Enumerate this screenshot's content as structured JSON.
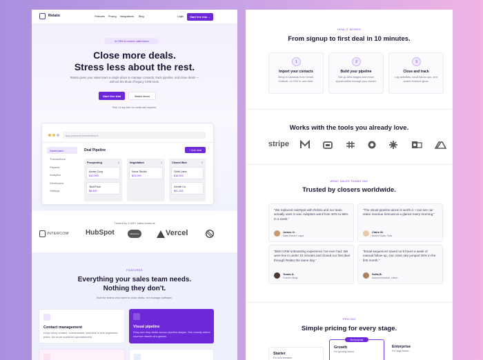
{
  "left": {
    "nav": {
      "brand": "Relato",
      "links": [
        "Features",
        "Pricing",
        "Integrations",
        "Blog"
      ],
      "login": "Login",
      "cta": "Start free trial →"
    },
    "hero": {
      "badge": "AI CRM for modern sales teams",
      "title": [
        "Close more deals.",
        "Stress less about the rest."
      ],
      "subtitle": "Relato gives your sales team a single place to manage contacts, track pipeline, and close deals — without the bloat of legacy CRM tools.",
      "primary": "Start free trial",
      "secondary": "Watch demo",
      "note": "Free 14-day trial. No credit card required."
    },
    "app": {
      "url": "app.payvault.io/dashboard",
      "sidebar": [
        "Dashboard",
        "Transactions",
        "Payouts",
        "Analytics",
        "Developers",
        "Settings"
      ],
      "heading": "Deal Pipeline",
      "add": "+ Add deal",
      "columns": [
        {
          "name": "Prospecting",
          "count": "3",
          "deals": [
            {
              "name": "Acme Corp",
              "value": "$12,000"
            },
            {
              "name": "TechFlow",
              "value": "$8,400"
            }
          ]
        },
        {
          "name": "Negotiation",
          "count": "2",
          "deals": [
            {
              "name": "Nova Studio",
              "value": "$24,000"
            }
          ]
        },
        {
          "name": "Closed Won",
          "count": "5",
          "deals": [
            {
              "name": "Orbit Labs",
              "value": "$18,500"
            },
            {
              "name": "Zenith Co",
              "value": "$31,200"
            }
          ]
        }
      ]
    },
    "trusted": {
      "text": "Trusted by 5,000+ sales teams at",
      "logos": [
        "INTERCOM",
        "HubSpot",
        "salesforce",
        "Vercel"
      ]
    },
    "features": {
      "eyebrow": "FEATURES",
      "title": [
        "Everything your sales team needs.",
        "Nothing they don't."
      ],
      "subtitle": "Built for teams who want to close deals, not manage software.",
      "cards": [
        {
          "title": "Contact management",
          "text": "Keep every contact, conversation, and deal in one organized place. No more scattered spreadsheets."
        },
        {
          "title": "Visual pipeline",
          "text": "Drag and drop deals across pipeline stages. See exactly where revenue stands at a glance."
        }
      ]
    }
  },
  "right": {
    "how": {
      "eyebrow": "HOW IT WORKS",
      "title": "From signup to first deal in 10 minutes.",
      "steps": [
        {
          "number": "1",
          "title": "Import your contacts",
          "text": "Bring in contacts from Gmail, Outlook, or CSV in one click."
        },
        {
          "number": "2",
          "title": "Build your pipeline",
          "text": "Set up deal stages and move opportunities through your funnel."
        },
        {
          "number": "3",
          "title": "Close and track",
          "text": "Log activities, send follow-ups, and watch revenue grow."
        }
      ]
    },
    "integrations": {
      "title": "Works with the tools you already love.",
      "stripe": "stripe"
    },
    "testimonials": {
      "eyebrow": "WHAT SALES TEAMS SAY",
      "title": "Trusted by closers worldwide.",
      "items": [
        {
          "quote": "“We replaced HubSpot with Relato and our team actually uses it now. Adoption went from 40% to 95% in a week.”",
          "name": "James O.",
          "role": "Sales Director, Lagos"
        },
        {
          "quote": "“The visual pipeline alone is worth it. I can see our entire revenue forecast at a glance every morning.”",
          "name": "Claire M.",
          "role": "Head of Sales, Paris"
        },
        {
          "quote": "“Best CRM onboarding experience I've ever had. We were live in under 10 minutes and closed our first deal through Relato the same day.”",
          "name": "Tunde A.",
          "role": "Founder, Abuja"
        },
        {
          "quote": "“Email sequences saved us 6 hours a week of manual follow-up. Our close rate jumped 28% in the first month.”",
          "name": "Sofia B.",
          "role": "Account Executive, Lisbon"
        }
      ]
    },
    "pricing": {
      "eyebrow": "PRICING",
      "title": "Simple pricing for every stage.",
      "badge": "Most popular",
      "plans": [
        {
          "name": "Starter",
          "text": "For solo founders"
        },
        {
          "name": "Growth",
          "text": "For growing teams"
        },
        {
          "name": "Enterprise",
          "text": "For large teams"
        }
      ]
    }
  }
}
